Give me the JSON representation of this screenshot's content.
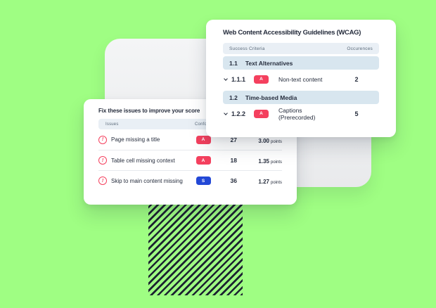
{
  "colors": {
    "bg_green": "#9FFE83",
    "navy": "#262D3D",
    "muted": "#5C6B7B",
    "red": "#F4405E",
    "blue": "#2348D6",
    "row_blue": "#D8E6EF",
    "header_bg": "#E9EFF5",
    "stripe": "#1C2331",
    "divider": "#E7EAEE"
  },
  "icons": {
    "error_glyph": "!"
  },
  "wcag_card": {
    "title": "Web Content Accessibility Guidelines (WCAG)",
    "columns": {
      "criteria": "Success Criteria",
      "occurrences": "Occurences"
    },
    "rows": [
      {
        "type": "section",
        "number": "1.1",
        "label": "Text Alternatives"
      },
      {
        "type": "criterion",
        "number": "1.1.1",
        "level": "A",
        "label": "Non-text content",
        "count": "2"
      },
      {
        "type": "section",
        "number": "1.2",
        "label": "Time-based Media"
      },
      {
        "type": "criterion",
        "number": "1.2.2",
        "level": "A",
        "label": "Captions (Prerecorded)",
        "count": "5"
      }
    ]
  },
  "issues_card": {
    "title": "Fix these issues to improve your score",
    "columns": {
      "issues": "Issues",
      "conformance": "Conformance"
    },
    "points_label": "points",
    "rows": [
      {
        "label": "Page missing a title",
        "level": "A",
        "level_color": "red",
        "count": "27",
        "points": "3.00"
      },
      {
        "label": "Table cell missing context",
        "level": "A",
        "level_color": "red",
        "count": "18",
        "points": "1.35"
      },
      {
        "label": "Skip to main content missing",
        "level": "S",
        "level_color": "blue",
        "count": "36",
        "points": "1.27"
      }
    ]
  }
}
